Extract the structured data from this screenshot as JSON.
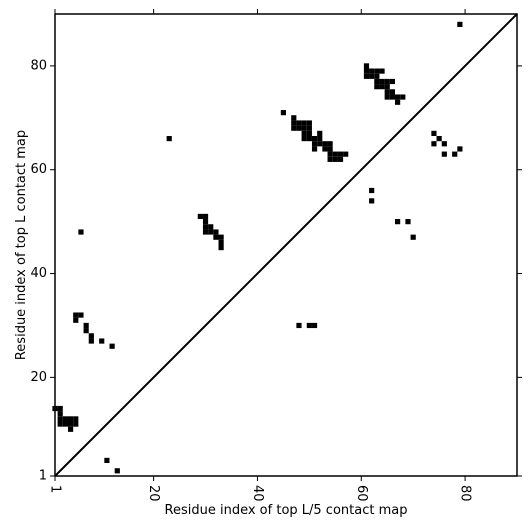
{
  "chart_data": {
    "type": "scatter",
    "marker": "square",
    "xlabel": "Residue index of top L/5 contact map",
    "ylabel": "Residue index of top L contact map",
    "xlim": [
      1,
      90
    ],
    "ylim": [
      1,
      90
    ],
    "x_ticks": [
      1,
      20,
      40,
      60,
      80
    ],
    "y_ticks": [
      1,
      20,
      40,
      60,
      80
    ],
    "x_tick_labels": [
      "1",
      "20",
      "40",
      "60",
      "80"
    ],
    "y_tick_labels": [
      "1",
      "20",
      "40",
      "60",
      "80"
    ],
    "x_tick_rotation": -90,
    "grid": false,
    "diagonal": true,
    "colors": {
      "marker": "#000000",
      "diagonal": "#000000",
      "frame": "#000000"
    },
    "points": [
      [
        1,
        14
      ],
      [
        2,
        14
      ],
      [
        2,
        13
      ],
      [
        2,
        12
      ],
      [
        2,
        11
      ],
      [
        3,
        12
      ],
      [
        3,
        11
      ],
      [
        4,
        12
      ],
      [
        4,
        11
      ],
      [
        5,
        12
      ],
      [
        5,
        11
      ],
      [
        4,
        10
      ],
      [
        5,
        32
      ],
      [
        5,
        31
      ],
      [
        6,
        32
      ],
      [
        6,
        48
      ],
      [
        7,
        30
      ],
      [
        7,
        29
      ],
      [
        8,
        28
      ],
      [
        8,
        27
      ],
      [
        10,
        27
      ],
      [
        12,
        26
      ],
      [
        11,
        4
      ],
      [
        13,
        2
      ],
      [
        23,
        66
      ],
      [
        29,
        51
      ],
      [
        30,
        51
      ],
      [
        30,
        50
      ],
      [
        30,
        49
      ],
      [
        30,
        48
      ],
      [
        31,
        49
      ],
      [
        31,
        48
      ],
      [
        32,
        48
      ],
      [
        32,
        47
      ],
      [
        33,
        47
      ],
      [
        33,
        46
      ],
      [
        33,
        45
      ],
      [
        45,
        71
      ],
      [
        47,
        70
      ],
      [
        47,
        69
      ],
      [
        47,
        68
      ],
      [
        48,
        69
      ],
      [
        48,
        68
      ],
      [
        49,
        69
      ],
      [
        49,
        68
      ],
      [
        49,
        67
      ],
      [
        49,
        66
      ],
      [
        50,
        69
      ],
      [
        50,
        68
      ],
      [
        50,
        67
      ],
      [
        50,
        66
      ],
      [
        51,
        66
      ],
      [
        51,
        65
      ],
      [
        51,
        64
      ],
      [
        52,
        67
      ],
      [
        52,
        66
      ],
      [
        52,
        65
      ],
      [
        53,
        65
      ],
      [
        53,
        64
      ],
      [
        54,
        65
      ],
      [
        54,
        64
      ],
      [
        54,
        63
      ],
      [
        54,
        62
      ],
      [
        55,
        63
      ],
      [
        55,
        62
      ],
      [
        56,
        63
      ],
      [
        56,
        62
      ],
      [
        57,
        63
      ],
      [
        48,
        30
      ],
      [
        50,
        30
      ],
      [
        51,
        30
      ],
      [
        61,
        80
      ],
      [
        61,
        79
      ],
      [
        61,
        78
      ],
      [
        62,
        79
      ],
      [
        62,
        78
      ],
      [
        63,
        79
      ],
      [
        63,
        78
      ],
      [
        63,
        77
      ],
      [
        63,
        76
      ],
      [
        64,
        79
      ],
      [
        64,
        77
      ],
      [
        64,
        76
      ],
      [
        65,
        77
      ],
      [
        65,
        76
      ],
      [
        65,
        75
      ],
      [
        65,
        74
      ],
      [
        66,
        77
      ],
      [
        66,
        75
      ],
      [
        66,
        74
      ],
      [
        67,
        74
      ],
      [
        67,
        73
      ],
      [
        68,
        74
      ],
      [
        62,
        56
      ],
      [
        62,
        54
      ],
      [
        67,
        50
      ],
      [
        69,
        50
      ],
      [
        70,
        47
      ],
      [
        74,
        67
      ],
      [
        74,
        65
      ],
      [
        75,
        66
      ],
      [
        76,
        65
      ],
      [
        76,
        63
      ],
      [
        78,
        63
      ],
      [
        79,
        64
      ],
      [
        79,
        88
      ]
    ]
  }
}
